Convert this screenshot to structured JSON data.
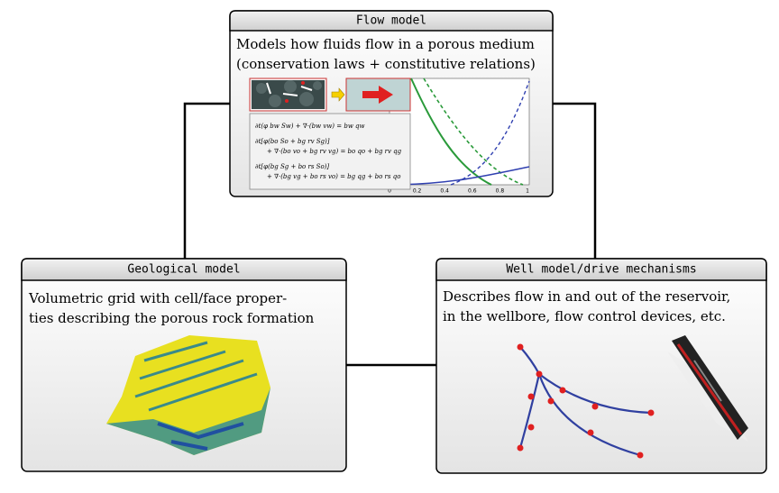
{
  "flow_model": {
    "title": "Flow model",
    "description": [
      "Models how fluids flow in a porous medium",
      "(conservation laws + constitutive relations)"
    ],
    "equations": [
      "∂t(φ bw Sw) + ∇·(bw vw) = bw qw",
      "∂t[φ(bo So + bg rv Sg)]",
      "+ ∇·(bo vo + bg rv vg) = bo qo + bg rv qg",
      "∂t[φ(bg Sg + bo rs So)]",
      "+ ∇·(bg vg + bo rs vo) = bg qg + bo rs qo"
    ],
    "plot_ticks": [
      "0",
      "0.2",
      "0.4",
      "0.6",
      "0.8",
      "1"
    ]
  },
  "geological_model": {
    "title": "Geological model",
    "description": [
      "Volumetric grid with cell/face proper-",
      "ties describing the porous rock formation"
    ]
  },
  "well_model": {
    "title": "Well model/drive mechanisms",
    "description": [
      "Describes flow in and out of the reservoir,",
      "in the wellbore, flow control devices, etc."
    ]
  }
}
